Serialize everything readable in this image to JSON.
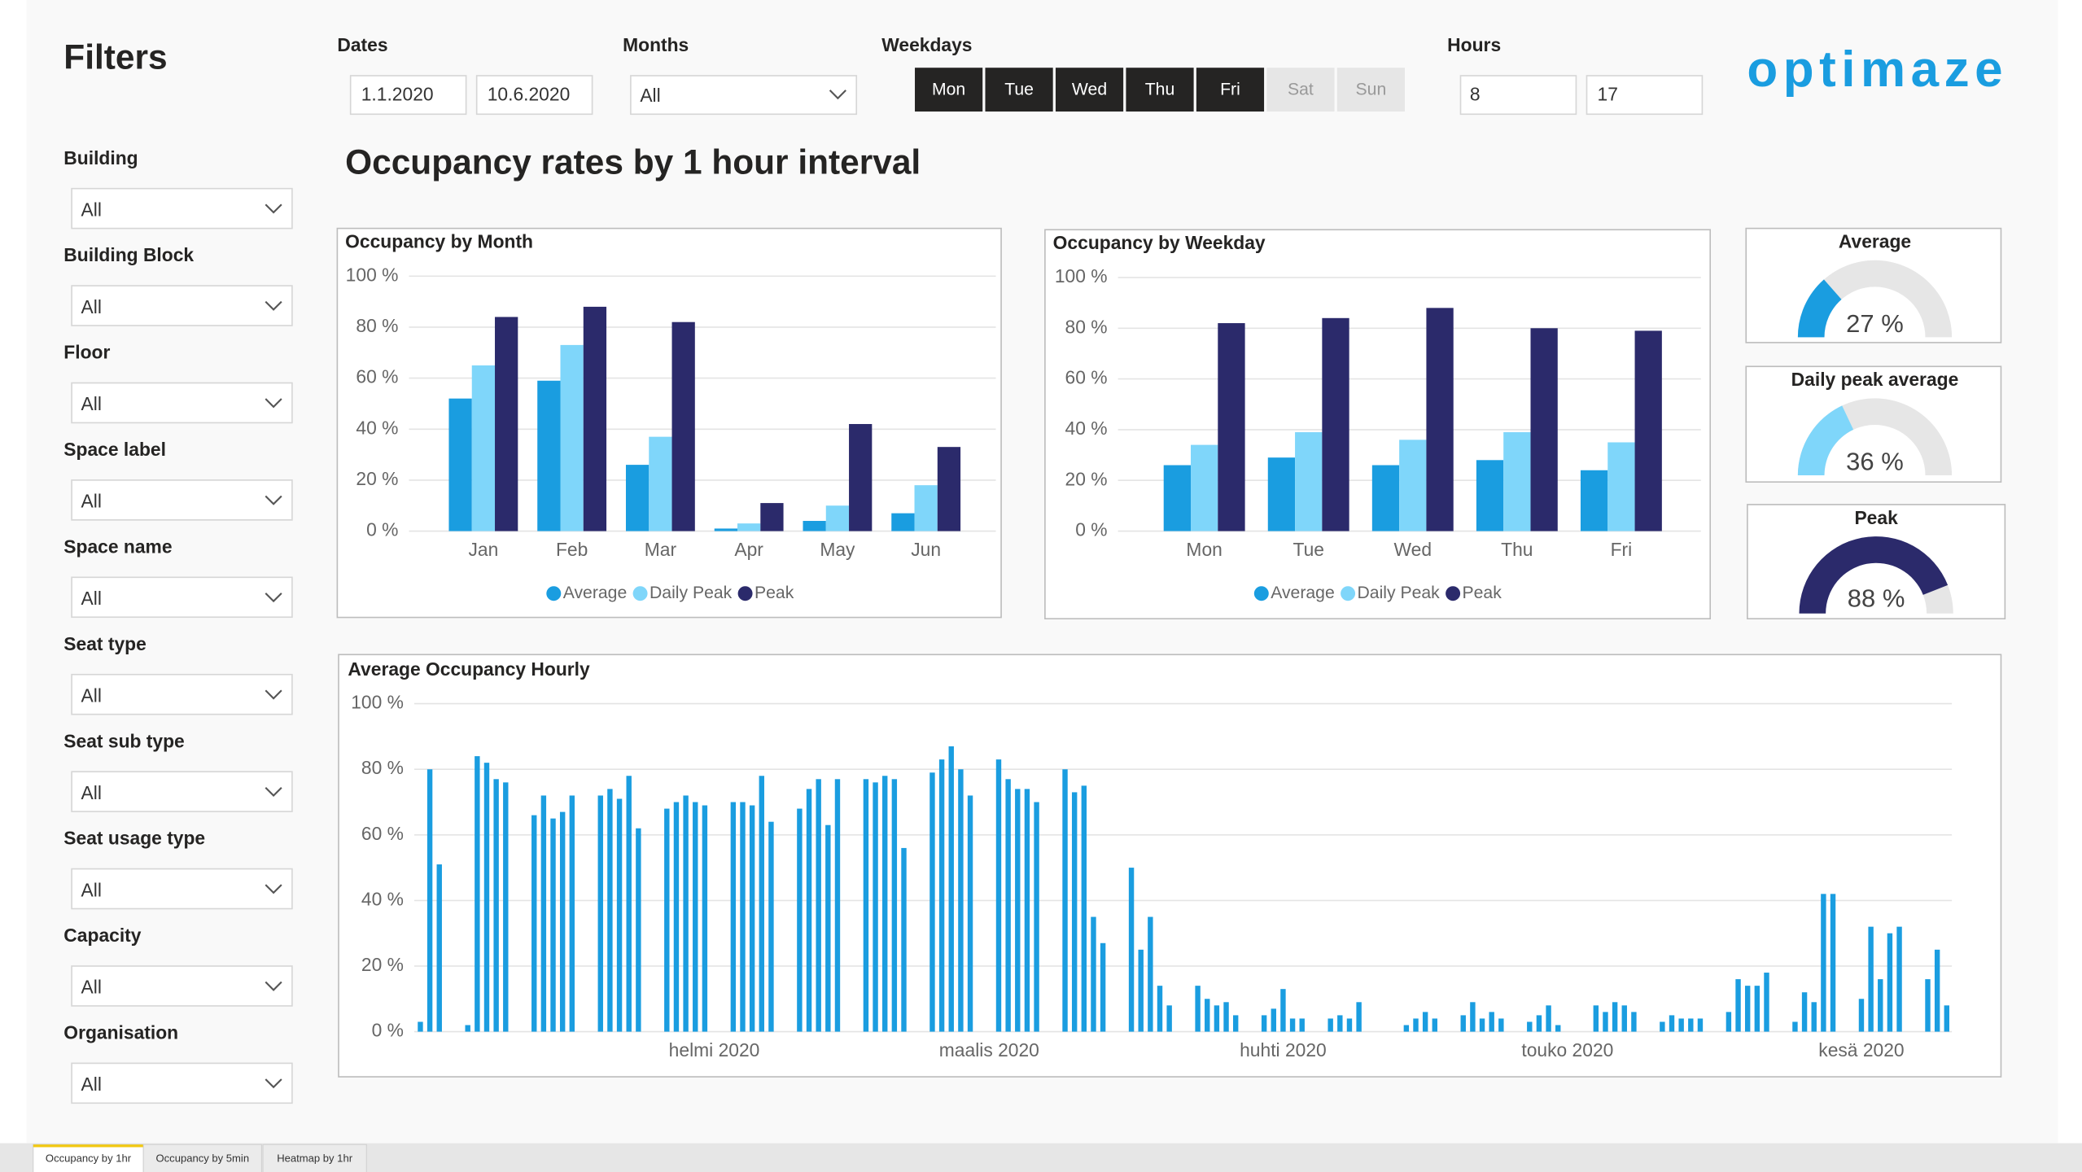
{
  "filters": {
    "title": "Filters",
    "items": [
      {
        "label": "Building",
        "value": "All"
      },
      {
        "label": "Building Block",
        "value": "All"
      },
      {
        "label": "Floor",
        "value": "All"
      },
      {
        "label": "Space label",
        "value": "All"
      },
      {
        "label": "Space name",
        "value": "All"
      },
      {
        "label": "Seat type",
        "value": "All"
      },
      {
        "label": "Seat sub type",
        "value": "All"
      },
      {
        "label": "Seat usage type",
        "value": "All"
      },
      {
        "label": "Capacity",
        "value": "All"
      },
      {
        "label": "Organisation",
        "value": "All"
      }
    ]
  },
  "header": {
    "dates": {
      "label": "Dates",
      "from": "1.1.2020",
      "to": "10.6.2020"
    },
    "months": {
      "label": "Months",
      "value": "All"
    },
    "weekdays": {
      "label": "Weekdays",
      "days": [
        {
          "label": "Mon",
          "selected": true
        },
        {
          "label": "Tue",
          "selected": true
        },
        {
          "label": "Wed",
          "selected": true
        },
        {
          "label": "Thu",
          "selected": true
        },
        {
          "label": "Fri",
          "selected": true
        },
        {
          "label": "Sat",
          "selected": false
        },
        {
          "label": "Sun",
          "selected": false
        }
      ]
    },
    "hours": {
      "label": "Hours",
      "from": "8",
      "to": "17"
    },
    "logo": "optimaze",
    "title": "Occupancy rates by 1 hour interval"
  },
  "chart_data": [
    {
      "type": "bar",
      "title": "Occupancy by Month",
      "categories": [
        "Jan",
        "Feb",
        "Mar",
        "Apr",
        "May",
        "Jun"
      ],
      "series": [
        {
          "name": "Average",
          "color": "#1a9de0",
          "values": [
            52,
            59,
            26,
            1,
            4,
            7
          ]
        },
        {
          "name": "Daily Peak",
          "color": "#7fd6fa",
          "values": [
            65,
            73,
            37,
            3,
            10,
            18
          ]
        },
        {
          "name": "Peak",
          "color": "#2b2a6b",
          "values": [
            84,
            88,
            82,
            11,
            42,
            33
          ]
        }
      ],
      "ylim": [
        0,
        100
      ],
      "yticks": [
        {
          "value": 0,
          "label": "0 %"
        },
        {
          "value": 20,
          "label": "20 %"
        },
        {
          "value": 40,
          "label": "40 %"
        },
        {
          "value": 60,
          "label": "60 %"
        },
        {
          "value": 80,
          "label": "80 %"
        },
        {
          "value": 100,
          "label": "100 %"
        }
      ],
      "grid": true,
      "legend": "bottom"
    },
    {
      "type": "bar",
      "title": "Occupancy by Weekday",
      "categories": [
        "Mon",
        "Tue",
        "Wed",
        "Thu",
        "Fri"
      ],
      "series": [
        {
          "name": "Average",
          "color": "#1a9de0",
          "values": [
            26,
            29,
            26,
            28,
            24
          ]
        },
        {
          "name": "Daily Peak",
          "color": "#7fd6fa",
          "values": [
            34,
            39,
            36,
            39,
            35
          ]
        },
        {
          "name": "Peak",
          "color": "#2b2a6b",
          "values": [
            82,
            84,
            88,
            80,
            79
          ]
        }
      ],
      "ylim": [
        0,
        100
      ],
      "yticks": [
        {
          "value": 0,
          "label": "0 %"
        },
        {
          "value": 20,
          "label": "20 %"
        },
        {
          "value": 40,
          "label": "40 %"
        },
        {
          "value": 60,
          "label": "60 %"
        },
        {
          "value": 80,
          "label": "80 %"
        },
        {
          "value": 100,
          "label": "100 %"
        }
      ],
      "grid": true,
      "legend": "bottom"
    },
    {
      "type": "gauge",
      "title": "Average",
      "value": 27,
      "value_label": "27 %",
      "color": "#1a9de0",
      "ylim": [
        0,
        100
      ]
    },
    {
      "type": "gauge",
      "title": "Daily peak average",
      "value": 36,
      "value_label": "36 %",
      "color": "#7fd6fa",
      "ylim": [
        0,
        100
      ]
    },
    {
      "type": "gauge",
      "title": "Peak",
      "value": 88,
      "value_label": "88 %",
      "color": "#2b2a6b",
      "ylim": [
        0,
        100
      ]
    },
    {
      "type": "bar",
      "title": "Average Occupancy Hourly",
      "categories": [
        null,
        null,
        null,
        null,
        null,
        null,
        null,
        null,
        null,
        null,
        null,
        null,
        null,
        null,
        null,
        null,
        null,
        null,
        null,
        null,
        null,
        null,
        null,
        null,
        null,
        null,
        null,
        null,
        null,
        null,
        null,
        "helmi 2020",
        null,
        null,
        null,
        null,
        null,
        null,
        null,
        null,
        null,
        null,
        null,
        null,
        null,
        null,
        null,
        null,
        null,
        null,
        null,
        null,
        null,
        null,
        null,
        null,
        null,
        null,
        null,
        null,
        "maalis 2020",
        null,
        null,
        null,
        null,
        null,
        null,
        null,
        null,
        null,
        null,
        null,
        null,
        null,
        null,
        null,
        null,
        null,
        null,
        null,
        null,
        null,
        null,
        null,
        null,
        null,
        null,
        null,
        null,
        null,
        null,
        "huhti 2020",
        null,
        null,
        null,
        null,
        null,
        null,
        null,
        null,
        null,
        null,
        null,
        null,
        null,
        null,
        null,
        null,
        null,
        null,
        null,
        null,
        null,
        null,
        null,
        null,
        null,
        null,
        null,
        null,
        null,
        "touko 2020",
        null,
        null,
        null,
        null,
        null,
        null,
        null,
        null,
        null,
        null,
        null,
        null,
        null,
        null,
        null,
        null,
        null,
        null,
        null,
        null,
        null,
        null,
        null,
        null,
        null,
        null,
        null,
        null,
        null,
        null,
        "kesä 2020",
        null,
        null,
        null,
        null,
        null,
        null,
        null,
        null,
        null
      ],
      "values": [
        3,
        80,
        51,
        null,
        null,
        2,
        84,
        82,
        77,
        76,
        null,
        null,
        66,
        72,
        65,
        67,
        72,
        null,
        null,
        72,
        74,
        71,
        78,
        62,
        null,
        null,
        68,
        70,
        72,
        70,
        69,
        null,
        null,
        70,
        70,
        69,
        78,
        64,
        null,
        null,
        68,
        74,
        77,
        63,
        77,
        null,
        null,
        77,
        76,
        78,
        77,
        56,
        null,
        null,
        79,
        83,
        87,
        80,
        72,
        null,
        null,
        83,
        77,
        74,
        74,
        70,
        null,
        null,
        80,
        73,
        75,
        35,
        27,
        null,
        null,
        50,
        25,
        35,
        14,
        8,
        null,
        null,
        14,
        10,
        8,
        9,
        5,
        null,
        null,
        5,
        7,
        13,
        4,
        4,
        null,
        null,
        4,
        5,
        4,
        9,
        null,
        null,
        null,
        null,
        2,
        4,
        6,
        4,
        null,
        null,
        5,
        9,
        4,
        6,
        4,
        null,
        null,
        3,
        5,
        8,
        2,
        null,
        null,
        null,
        8,
        6,
        9,
        8,
        6,
        null,
        null,
        3,
        5,
        4,
        4,
        4,
        null,
        null,
        6,
        16,
        14,
        14,
        18,
        null,
        null,
        3,
        12,
        9,
        42,
        42,
        null,
        null,
        10,
        32,
        16,
        30,
        32,
        null,
        null,
        16,
        25,
        8
      ],
      "color": "#1a9de0",
      "ylim": [
        0,
        100
      ],
      "yticks": [
        {
          "value": 0,
          "label": "0 %"
        },
        {
          "value": 20,
          "label": "20 %"
        },
        {
          "value": 40,
          "label": "40 %"
        },
        {
          "value": 60,
          "label": "60 %"
        },
        {
          "value": 80,
          "label": "80 %"
        },
        {
          "value": 100,
          "label": "100 %"
        }
      ],
      "grid": true
    }
  ],
  "tabs": [
    {
      "label": "Occupancy by 1hr",
      "active": true
    },
    {
      "label": "Occupancy by 5min",
      "active": false
    },
    {
      "label": "Heatmap by 1hr",
      "active": false
    }
  ]
}
